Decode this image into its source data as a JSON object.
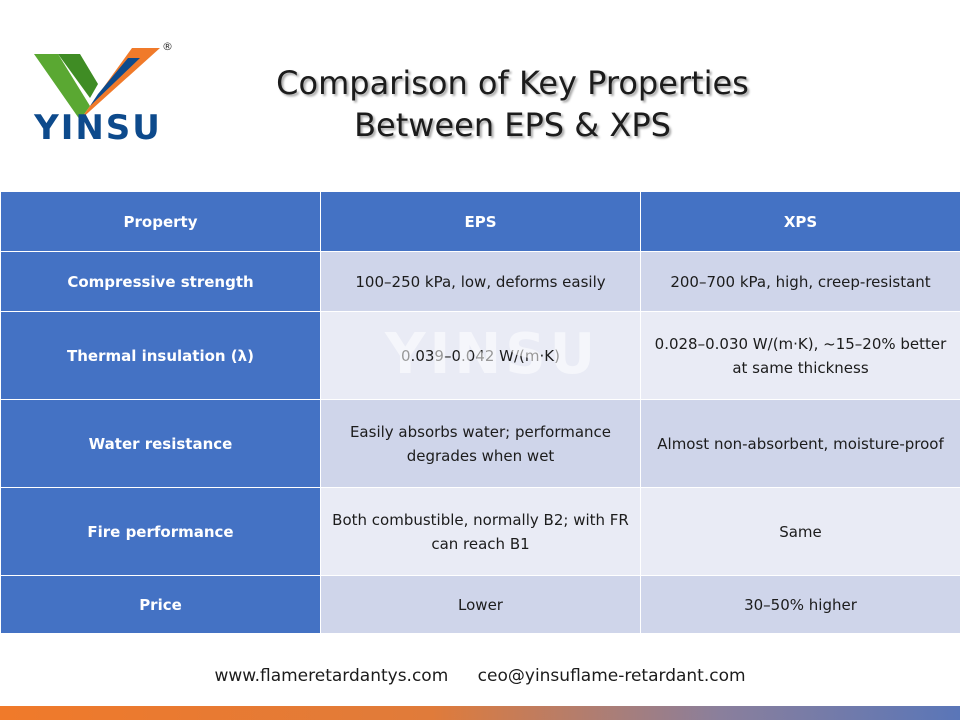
{
  "brand": {
    "name": "YINSU",
    "reg_mark": "®",
    "watermark": "YINSU"
  },
  "title": {
    "line1": "Comparison of Key Properties",
    "line2": "Between EPS & XPS"
  },
  "table": {
    "headers": [
      "Property",
      "EPS",
      "XPS"
    ],
    "rows": [
      {
        "property": "Compressive strength",
        "eps": "100–250 kPa, low, deforms easily",
        "xps": "200–700 kPa, high, creep-resistant"
      },
      {
        "property": "Thermal insulation (λ)",
        "eps": "0.039–0.042 W/(m·K)",
        "xps": "0.028–0.030 W/(m·K), ~15–20% better at same thickness"
      },
      {
        "property": "Water resistance",
        "eps": "Easily absorbs water; performance degrades when wet",
        "xps": "Almost non-absorbent, moisture-proof"
      },
      {
        "property": "Fire performance",
        "eps": "Both combustible, normally B2; with FR can reach B1",
        "xps": "Same"
      },
      {
        "property": "Price",
        "eps": "Lower",
        "xps": "30–50% higher"
      }
    ]
  },
  "footer": {
    "website": "www.flameretardantys.com",
    "email": "ceo@yinsuflame-retardant.com"
  },
  "colors": {
    "header_blue": "#4472c4",
    "row_dark": "#cfd5ea",
    "row_light": "#e9ebf5",
    "brand_orange": "#f07a2a",
    "brand_green": "#5aa832",
    "brand_navy": "#0d4a8c"
  }
}
